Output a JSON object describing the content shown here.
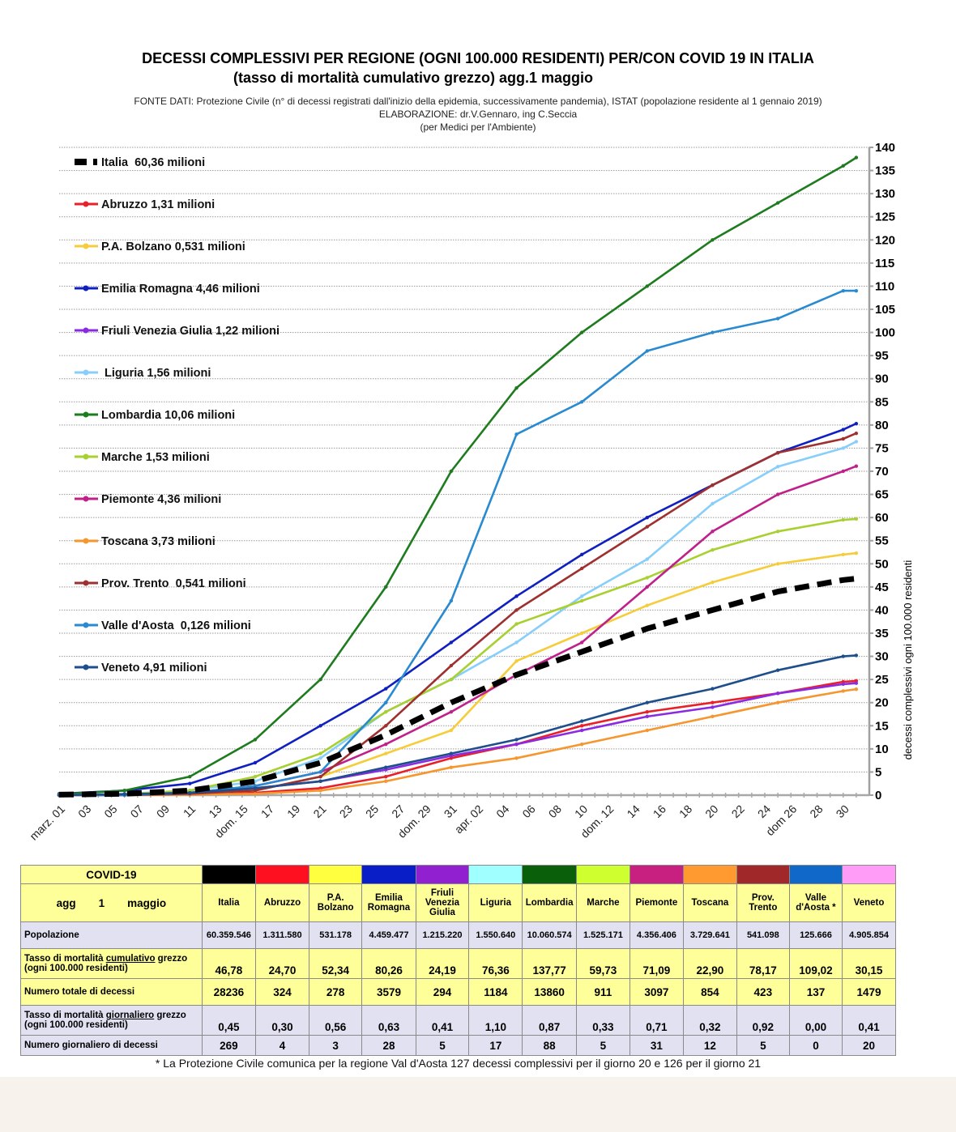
{
  "header": {
    "title_line1": "DECESSI COMPLESSIVI PER REGIONE (OGNI 100.000 RESIDENTI) PER/CON COVID 19 IN ITALIA",
    "title_line2": "(tasso di mortalità cumulativo grezzo)   agg.1 maggio",
    "source_line1": "FONTE DATI: Protezione Civile (n° di decessi registrati dall'inizio della epidemia, successivamente pandemia), ISTAT (popolazione residente al 1 gennaio 2019)",
    "source_line2": "ELABORAZIONE: dr.V.Gennaro, ing C.Seccia",
    "source_line3": "(per Medici per l'Ambiente)"
  },
  "chart_data": {
    "type": "line",
    "title": "DECESSI COMPLESSIVI PER REGIONE (OGNI 100.000 RESIDENTI) PER/CON COVID 19 IN ITALIA",
    "xlabel": "",
    "ylabel": "decessi complessivi ogni 100.000 residenti",
    "ylim": [
      0,
      140
    ],
    "yticks": [
      0,
      5,
      10,
      15,
      20,
      25,
      30,
      35,
      40,
      45,
      50,
      55,
      60,
      65,
      70,
      75,
      80,
      85,
      90,
      95,
      100,
      105,
      110,
      115,
      120,
      125,
      130,
      135,
      140
    ],
    "xlim_days": [
      0,
      61
    ],
    "xtick_labels": [
      {
        "day": 0,
        "label": "marz. 01"
      },
      {
        "day": 2,
        "label": "03"
      },
      {
        "day": 4,
        "label": "05"
      },
      {
        "day": 6,
        "label": "07"
      },
      {
        "day": 8,
        "label": "09"
      },
      {
        "day": 10,
        "label": "11"
      },
      {
        "day": 12,
        "label": "13"
      },
      {
        "day": 14,
        "label": "dom. 15"
      },
      {
        "day": 16,
        "label": "17"
      },
      {
        "day": 18,
        "label": "19"
      },
      {
        "day": 20,
        "label": "21"
      },
      {
        "day": 22,
        "label": "23"
      },
      {
        "day": 24,
        "label": "25"
      },
      {
        "day": 26,
        "label": "27"
      },
      {
        "day": 28,
        "label": "dom. 29"
      },
      {
        "day": 30,
        "label": "31"
      },
      {
        "day": 32,
        "label": "apr. 02"
      },
      {
        "day": 34,
        "label": "04"
      },
      {
        "day": 36,
        "label": "06"
      },
      {
        "day": 38,
        "label": "08"
      },
      {
        "day": 40,
        "label": "10"
      },
      {
        "day": 42,
        "label": "dom. 12"
      },
      {
        "day": 44,
        "label": "14"
      },
      {
        "day": 46,
        "label": "16"
      },
      {
        "day": 48,
        "label": "18"
      },
      {
        "day": 50,
        "label": "20"
      },
      {
        "day": 52,
        "label": "22"
      },
      {
        "day": 54,
        "label": "24"
      },
      {
        "day": 56,
        "label": "dom 26"
      },
      {
        "day": 58,
        "label": "28"
      },
      {
        "day": 60,
        "label": "30"
      }
    ],
    "x": [
      0,
      5,
      10,
      15,
      20,
      25,
      30,
      35,
      40,
      45,
      50,
      55,
      60,
      61
    ],
    "grid": true,
    "legend_position": "top-left",
    "series": [
      {
        "name": "Italia  60,36 milioni",
        "color": "#000000",
        "style": "dashed",
        "values": [
          0.1,
          0.3,
          1,
          3,
          7,
          13,
          20,
          26,
          31,
          36,
          40,
          44,
          46.5,
          46.8
        ]
      },
      {
        "name": "Abruzzo 1,31 milioni",
        "color": "#e8202a",
        "style": "solid",
        "values": [
          0,
          0,
          0.2,
          0.5,
          1.5,
          4,
          8,
          11,
          15,
          18,
          20,
          22,
          24.5,
          24.7
        ]
      },
      {
        "name": "P.A. Bolzano 0,531 milioni",
        "color": "#f5cc3a",
        "style": "solid",
        "values": [
          0,
          0,
          0.3,
          1,
          4,
          9,
          14,
          29,
          35,
          41,
          46,
          50,
          52,
          52.3
        ]
      },
      {
        "name": "Emilia Romagna 4,46 milioni",
        "color": "#1020c0",
        "style": "solid",
        "values": [
          0.3,
          1,
          2.5,
          7,
          15,
          23,
          33,
          43,
          52,
          60,
          67,
          74,
          79,
          80.3
        ]
      },
      {
        "name": "Friuli Venezia Giulia 1,22 milioni",
        "color": "#8a2be2",
        "style": "solid",
        "values": [
          0,
          0.2,
          0.5,
          1.5,
          3,
          5.5,
          8.5,
          11,
          14,
          17,
          19,
          22,
          24,
          24.2
        ]
      },
      {
        "name": " Liguria 1,56 milioni",
        "color": "#87cefa",
        "style": "solid",
        "values": [
          0,
          0.3,
          1,
          3,
          8,
          18,
          25,
          33,
          43,
          51,
          63,
          71,
          75,
          76.4
        ]
      },
      {
        "name": "Lombardia 10,06 milioni",
        "color": "#1e7b1e",
        "style": "solid",
        "values": [
          0.2,
          1,
          4,
          12,
          25,
          45,
          70,
          88,
          100,
          110,
          120,
          128,
          136,
          137.8
        ]
      },
      {
        "name": "Marche 1,53 milioni",
        "color": "#a8d030",
        "style": "solid",
        "values": [
          0,
          0.2,
          1,
          4,
          9,
          18,
          25,
          37,
          42,
          47,
          53,
          57,
          59.5,
          59.7
        ]
      },
      {
        "name": "Piemonte 4,36 milioni",
        "color": "#c0208a",
        "style": "solid",
        "values": [
          0,
          0.2,
          0.5,
          2,
          5,
          11,
          18,
          26,
          33,
          45,
          57,
          65,
          70,
          71.1
        ]
      },
      {
        "name": "Toscana 3,73 milioni",
        "color": "#f5962e",
        "style": "solid",
        "values": [
          0,
          0,
          0.1,
          0.3,
          1,
          3,
          6,
          8,
          11,
          14,
          17,
          20,
          22.5,
          22.9
        ]
      },
      {
        "name": "Prov. Trento  0,541 milioni",
        "color": "#a03030",
        "style": "solid",
        "values": [
          0,
          0,
          0.3,
          1,
          4,
          15,
          28,
          40,
          49,
          58,
          67,
          74,
          77,
          78.2
        ]
      },
      {
        "name": "Valle d'Aosta  0,126 milioni",
        "color": "#2a8ad0",
        "style": "solid",
        "values": [
          0,
          0,
          0.5,
          2,
          5,
          20,
          42,
          78,
          85,
          96,
          100,
          103,
          109,
          109
        ]
      },
      {
        "name": "Veneto 4,91 milioni",
        "color": "#1f4e8c",
        "style": "solid",
        "values": [
          0,
          0.2,
          0.5,
          1.5,
          3,
          6,
          9,
          12,
          16,
          20,
          23,
          27,
          30,
          30.2
        ]
      }
    ]
  },
  "table": {
    "corner_title": "COVID-19",
    "corner_sub": [
      "agg",
      "1",
      "maggio"
    ],
    "columns": [
      {
        "name": "Italia",
        "color": "#000000"
      },
      {
        "name": "Abruzzo",
        "color": "#ff1020"
      },
      {
        "name": "P.A. Bolzano",
        "color": "#ffff40"
      },
      {
        "name": "Emilia Romagna",
        "color": "#0a1ec8"
      },
      {
        "name": "Friuli Venezia Giulia",
        "color": "#9020d0"
      },
      {
        "name": "Liguria",
        "color": "#a0ffff"
      },
      {
        "name": "Lombardia",
        "color": "#0a600a"
      },
      {
        "name": "Marche",
        "color": "#d0ff30"
      },
      {
        "name": "Piemonte",
        "color": "#c82080"
      },
      {
        "name": "Toscana",
        "color": "#ff9a30"
      },
      {
        "name": "Prov. Trento",
        "color": "#a02828"
      },
      {
        "name": "Valle d'Aosta *",
        "color": "#1068c8"
      },
      {
        "name": "Veneto",
        "color": "#ff9cf8"
      }
    ],
    "rows": [
      {
        "label": "Popolazione",
        "values": [
          "60.359.546",
          "1.311.580",
          "531.178",
          "4.459.477",
          "1.215.220",
          "1.550.640",
          "10.060.574",
          "1.525.171",
          "4.356.406",
          "3.729.641",
          "541.098",
          "125.666",
          "4.905.854"
        ]
      },
      {
        "label_a": "Tasso di mortalità ",
        "label_u": "cumulativo",
        "label_b": " grezzo",
        "label_c": "(ogni 100.000 residenti)",
        "values": [
          "46,78",
          "24,70",
          "52,34",
          "80,26",
          "24,19",
          "76,36",
          "137,77",
          "59,73",
          "71,09",
          "22,90",
          "78,17",
          "109,02",
          "30,15"
        ]
      },
      {
        "label": "Numero totale di decessi",
        "values": [
          "28236",
          "324",
          "278",
          "3579",
          "294",
          "1184",
          "13860",
          "911",
          "3097",
          "854",
          "423",
          "137",
          "1479"
        ]
      },
      {
        "label_a": "Tasso di mortalità ",
        "label_u": "giornaliero",
        "label_b": " grezzo",
        "label_c": "(ogni 100.000 residenti)",
        "values": [
          "0,45",
          "0,30",
          "0,56",
          "0,63",
          "0,41",
          "1,10",
          "0,87",
          "0,33",
          "0,71",
          "0,32",
          "0,92",
          "0,00",
          "0,41"
        ]
      },
      {
        "label": "Numero giornaliero di decessi",
        "values": [
          "269",
          "4",
          "3",
          "28",
          "5",
          "17",
          "88",
          "5",
          "31",
          "12",
          "5",
          "0",
          "20"
        ]
      }
    ]
  },
  "footnote": "* La Protezione Civile  comunica per la regione Val d'Aosta  127 decessi complessivi per il giorno 20 e 126 per il giorno 21"
}
